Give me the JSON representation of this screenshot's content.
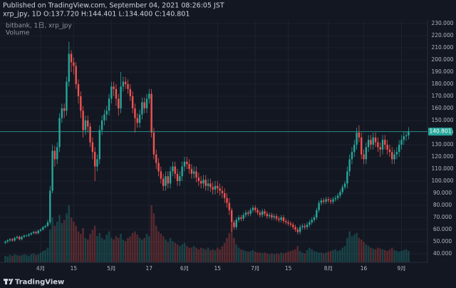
{
  "chart_data": {
    "type": "candlestick",
    "published": "Published on TradingView.com, September 04, 2021 08:26:05 JST",
    "symbol_line": "xrp_jpy, 1D O:137.720 H:144.401 L:134.400 C:140.801",
    "subtitle": "bitbank, 1日, xrp_jpy",
    "volume_label": "Volume",
    "brand": "TradingView",
    "up_color": "#26a69a",
    "down_color": "#ef5350",
    "grid": true,
    "categories": [
      null,
      null,
      null,
      null,
      null,
      null,
      null,
      null,
      null,
      null,
      null,
      null,
      null,
      null,
      null,
      "4月",
      null,
      null,
      null,
      null,
      null,
      null,
      null,
      null,
      null,
      null,
      null,
      null,
      null,
      "15",
      null,
      null,
      null,
      null,
      null,
      null,
      null,
      null,
      null,
      null,
      null,
      null,
      null,
      null,
      null,
      "5月",
      null,
      null,
      null,
      null,
      null,
      null,
      null,
      null,
      null,
      null,
      null,
      null,
      null,
      null,
      null,
      "17",
      null,
      null,
      null,
      null,
      null,
      null,
      null,
      null,
      null,
      null,
      null,
      null,
      null,
      null,
      "6月",
      null,
      null,
      null,
      null,
      null,
      null,
      null,
      null,
      null,
      null,
      null,
      null,
      null,
      "15",
      null,
      null,
      null,
      null,
      null,
      null,
      null,
      null,
      null,
      null,
      null,
      null,
      null,
      null,
      null,
      "7月",
      null,
      null,
      null,
      null,
      null,
      null,
      null,
      null,
      null,
      null,
      null,
      null,
      null,
      "15",
      null,
      null,
      null,
      null,
      null,
      null,
      null,
      null,
      null,
      null,
      null,
      null,
      null,
      null,
      null,
      null,
      "8月",
      null,
      null,
      null,
      null,
      null,
      null,
      null,
      null,
      null,
      null,
      null,
      null,
      null,
      null,
      "16",
      null,
      null,
      null,
      null,
      null,
      null,
      null,
      null,
      null,
      null,
      null,
      null,
      null,
      null,
      null,
      "9月",
      null,
      null,
      null
    ],
    "open": [
      49,
      50,
      51,
      52,
      51,
      53,
      54,
      52,
      54,
      55,
      55,
      56,
      57,
      58,
      57,
      59,
      60,
      62,
      63,
      66,
      92,
      125,
      118,
      128,
      152,
      160,
      158,
      182,
      205,
      198,
      195,
      180,
      170,
      158,
      142,
      150,
      145,
      132,
      124,
      112,
      118,
      142,
      150,
      155,
      158,
      168,
      178,
      176,
      168,
      160,
      178,
      182,
      180,
      176,
      170,
      160,
      152,
      148,
      155,
      165,
      160,
      168,
      172,
      140,
      122,
      115,
      108,
      102,
      96,
      104,
      98,
      108,
      112,
      106,
      100,
      104,
      112,
      116,
      114,
      110,
      106,
      108,
      103,
      100,
      98,
      101,
      96,
      98,
      95,
      93,
      96,
      94,
      92,
      90,
      86,
      82,
      76,
      66,
      62,
      68,
      70,
      69,
      72,
      74,
      73,
      76,
      78,
      76,
      74,
      72,
      75,
      73,
      71,
      72,
      70,
      71,
      69,
      68,
      70,
      67,
      66,
      65,
      64,
      62,
      60,
      58,
      62,
      63,
      62,
      64,
      66,
      68,
      70,
      76,
      82,
      84,
      83,
      85,
      84,
      83,
      85,
      86,
      88,
      91,
      95,
      98,
      108,
      118,
      124,
      130,
      140,
      136,
      122,
      118,
      128,
      134,
      130,
      136,
      132,
      128,
      126,
      134,
      130,
      126,
      124,
      118,
      122,
      124,
      130,
      134,
      137,
      137.72
    ],
    "high": [
      51,
      52,
      53,
      53,
      54,
      55,
      55,
      55,
      56,
      56,
      57,
      58,
      59,
      59,
      60,
      61,
      63,
      64,
      68,
      96,
      130,
      129,
      132,
      156,
      164,
      164,
      186,
      215,
      208,
      202,
      198,
      184,
      174,
      162,
      154,
      154,
      148,
      136,
      128,
      122,
      146,
      154,
      159,
      162,
      172,
      182,
      182,
      180,
      172,
      190,
      186,
      186,
      184,
      180,
      174,
      164,
      156,
      159,
      169,
      169,
      172,
      176,
      176,
      144,
      126,
      119,
      112,
      106,
      108,
      108,
      112,
      116,
      116,
      110,
      108,
      116,
      120,
      120,
      118,
      114,
      112,
      112,
      107,
      104,
      105,
      105,
      102,
      102,
      99,
      100,
      100,
      98,
      96,
      94,
      90,
      86,
      78,
      68,
      70,
      72,
      72,
      74,
      76,
      76,
      78,
      80,
      80,
      78,
      76,
      77,
      77,
      75,
      74,
      74,
      73,
      73,
      71,
      72,
      72,
      69,
      68,
      67,
      66,
      64,
      62,
      64,
      65,
      65,
      66,
      68,
      70,
      72,
      78,
      84,
      86,
      86,
      87,
      87,
      86,
      87,
      88,
      90,
      93,
      97,
      100,
      112,
      122,
      128,
      134,
      144,
      146,
      140,
      126,
      132,
      138,
      138,
      140,
      140,
      136,
      132,
      138,
      138,
      134,
      130,
      128,
      126,
      128,
      134,
      138,
      141,
      141,
      144.401
    ],
    "low": [
      48,
      49,
      50,
      50,
      50,
      52,
      51,
      51,
      53,
      54,
      54,
      55,
      56,
      56,
      56,
      58,
      59,
      61,
      62,
      64,
      90,
      112,
      114,
      124,
      148,
      152,
      154,
      178,
      190,
      188,
      176,
      164,
      152,
      136,
      138,
      140,
      128,
      118,
      100,
      108,
      114,
      138,
      146,
      150,
      154,
      164,
      170,
      162,
      154,
      156,
      174,
      176,
      172,
      166,
      156,
      140,
      144,
      144,
      151,
      156,
      156,
      164,
      136,
      118,
      110,
      104,
      98,
      92,
      92,
      94,
      94,
      104,
      102,
      96,
      96,
      100,
      108,
      110,
      106,
      102,
      102,
      99,
      96,
      94,
      94,
      92,
      92,
      91,
      89,
      89,
      90,
      88,
      86,
      82,
      78,
      72,
      58,
      60,
      60,
      66,
      67,
      67,
      70,
      71,
      71,
      74,
      74,
      72,
      70,
      70,
      71,
      69,
      69,
      68,
      68,
      67,
      66,
      66,
      65,
      64,
      63,
      62,
      60,
      58,
      56,
      56,
      60,
      60,
      60,
      62,
      64,
      66,
      68,
      74,
      80,
      81,
      81,
      82,
      81,
      81,
      83,
      84,
      86,
      89,
      93,
      94,
      104,
      114,
      120,
      126,
      132,
      118,
      114,
      114,
      124,
      126,
      126,
      128,
      124,
      120,
      122,
      126,
      122,
      120,
      114,
      114,
      118,
      120,
      126,
      130,
      133,
      134.4
    ],
    "close": [
      50,
      51,
      52,
      51,
      53,
      54,
      52,
      54,
      55,
      55,
      56,
      57,
      58,
      57,
      59,
      60,
      62,
      63,
      66,
      92,
      125,
      118,
      128,
      152,
      160,
      158,
      182,
      205,
      198,
      195,
      180,
      170,
      158,
      142,
      150,
      145,
      132,
      124,
      112,
      118,
      142,
      150,
      155,
      158,
      168,
      178,
      176,
      168,
      160,
      178,
      182,
      180,
      176,
      170,
      160,
      152,
      148,
      155,
      165,
      160,
      168,
      172,
      140,
      122,
      115,
      108,
      102,
      96,
      104,
      98,
      108,
      112,
      106,
      100,
      104,
      112,
      116,
      114,
      110,
      106,
      108,
      103,
      100,
      98,
      101,
      96,
      98,
      95,
      93,
      96,
      94,
      92,
      90,
      86,
      82,
      76,
      66,
      62,
      68,
      70,
      69,
      72,
      74,
      73,
      76,
      78,
      76,
      74,
      72,
      75,
      73,
      71,
      72,
      70,
      71,
      69,
      68,
      70,
      67,
      66,
      65,
      64,
      62,
      60,
      58,
      62,
      63,
      62,
      64,
      66,
      68,
      70,
      76,
      82,
      84,
      83,
      85,
      84,
      83,
      85,
      86,
      88,
      91,
      95,
      98,
      108,
      118,
      124,
      130,
      140,
      136,
      122,
      118,
      128,
      134,
      130,
      136,
      132,
      128,
      126,
      134,
      130,
      126,
      124,
      118,
      122,
      124,
      130,
      134,
      137,
      137.72,
      140.801
    ],
    "volume": [
      8,
      7,
      9,
      8,
      10,
      9,
      8,
      9,
      10,
      9,
      8,
      10,
      11,
      9,
      10,
      12,
      14,
      15,
      18,
      40,
      55,
      45,
      50,
      58,
      48,
      52,
      60,
      70,
      55,
      50,
      45,
      38,
      35,
      42,
      30,
      28,
      35,
      40,
      45,
      32,
      36,
      30,
      28,
      34,
      38,
      30,
      28,
      32,
      30,
      35,
      28,
      26,
      30,
      32,
      36,
      38,
      34,
      30,
      28,
      30,
      35,
      32,
      70,
      60,
      45,
      38,
      35,
      32,
      28,
      25,
      30,
      26,
      24,
      22,
      20,
      22,
      24,
      20,
      18,
      18,
      20,
      18,
      16,
      18,
      17,
      16,
      18,
      15,
      16,
      15,
      18,
      16,
      20,
      24,
      30,
      36,
      48,
      30,
      22,
      18,
      16,
      15,
      14,
      13,
      14,
      15,
      13,
      12,
      12,
      11,
      12,
      11,
      10,
      11,
      10,
      11,
      10,
      12,
      11,
      12,
      13,
      14,
      15,
      16,
      20,
      14,
      12,
      11,
      15,
      18,
      16,
      14,
      13,
      12,
      12,
      11,
      12,
      13,
      14,
      15,
      16,
      14,
      15,
      18,
      20,
      30,
      38,
      32,
      34,
      36,
      30,
      28,
      25,
      22,
      20,
      18,
      17,
      16,
      18,
      17,
      16,
      15,
      14,
      16,
      18,
      15,
      14,
      13,
      14,
      15,
      16,
      14
    ],
    "ylim": [
      30,
      240
    ],
    "yticks": [
      {
        "value": 40,
        "label": "40.000"
      },
      {
        "value": 50,
        "label": "50.000"
      },
      {
        "value": 60,
        "label": "60.000"
      },
      {
        "value": 70,
        "label": "70.000"
      },
      {
        "value": 80,
        "label": "80.000"
      },
      {
        "value": 90,
        "label": "90.000"
      },
      {
        "value": 100,
        "label": "100.000"
      },
      {
        "value": 110,
        "label": "110.000"
      },
      {
        "value": 120,
        "label": "120.000"
      },
      {
        "value": 130,
        "label": "130.000"
      },
      {
        "value": 140,
        "label": "140.000"
      },
      {
        "value": 150,
        "label": "150.000"
      },
      {
        "value": 160,
        "label": "160.000"
      },
      {
        "value": 170,
        "label": "170.000"
      },
      {
        "value": 180,
        "label": "180.000"
      },
      {
        "value": 190,
        "label": "190.000"
      },
      {
        "value": 200,
        "label": "200.000"
      },
      {
        "value": 210,
        "label": "210.000"
      },
      {
        "value": 220,
        "label": "220.000"
      },
      {
        "value": 230,
        "label": "230.000"
      }
    ]
  }
}
